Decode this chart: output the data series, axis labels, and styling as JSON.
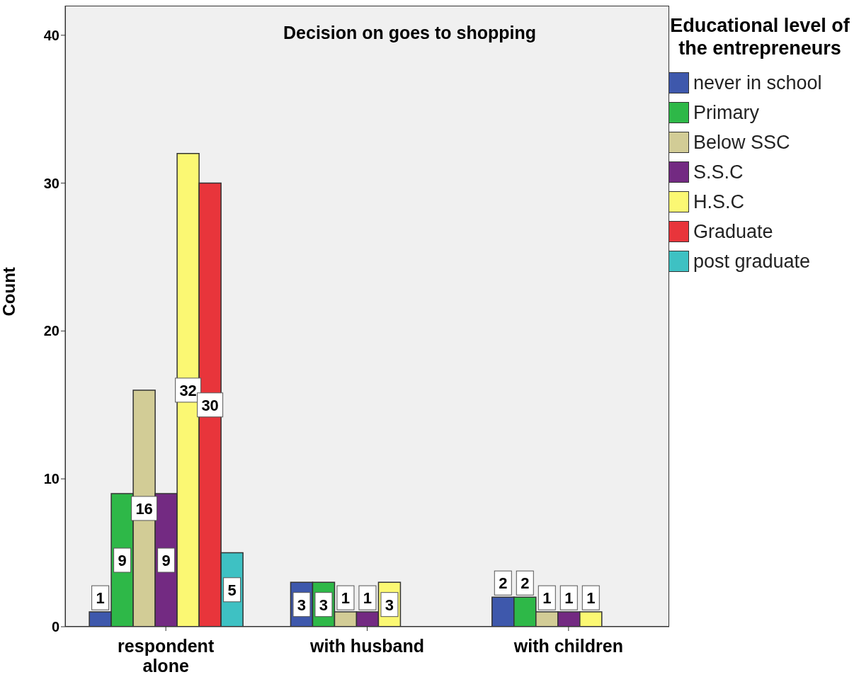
{
  "chart_data": {
    "type": "bar",
    "title": "Decision on goes to shopping",
    "ylabel": "Count",
    "legend_title": "Educational level of the entrepreneurs",
    "categories": [
      "respondent alone",
      "with husband",
      "with children"
    ],
    "series": [
      {
        "name": "never in school",
        "color": "#3e58ac",
        "values": [
          1,
          3,
          2
        ]
      },
      {
        "name": "Primary",
        "color": "#2eb848",
        "values": [
          9,
          3,
          2
        ]
      },
      {
        "name": "Below SSC",
        "color": "#d2cc96",
        "values": [
          16,
          1,
          1
        ]
      },
      {
        "name": "S.S.C",
        "color": "#732a82",
        "values": [
          9,
          1,
          1
        ]
      },
      {
        "name": "H.S.C",
        "color": "#fbf873",
        "values": [
          32,
          3,
          1
        ]
      },
      {
        "name": "Graduate",
        "color": "#e8353b",
        "values": [
          30,
          null,
          null
        ]
      },
      {
        "name": "post graduate",
        "color": "#3ec1c3",
        "values": [
          5,
          null,
          null
        ]
      }
    ],
    "ylim": [
      0,
      42
    ],
    "yticks": [
      0,
      10,
      20,
      30,
      40
    ],
    "grid": false,
    "legend": "right",
    "data_labels": true
  }
}
